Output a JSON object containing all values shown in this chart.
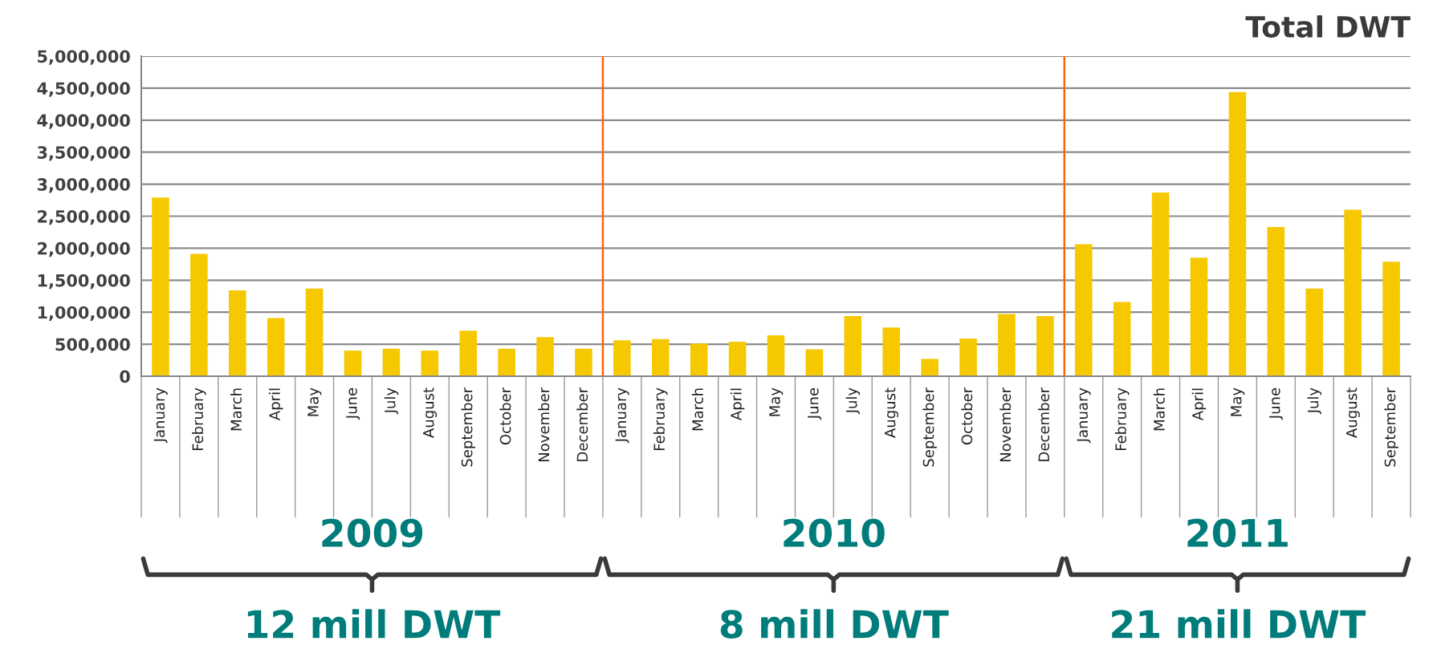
{
  "chart_data": {
    "type": "bar",
    "title": "Total DWT",
    "categories": [
      "January",
      "February",
      "March",
      "April",
      "May",
      "June",
      "July",
      "August",
      "September",
      "October",
      "November",
      "December",
      "January",
      "February",
      "March",
      "April",
      "May",
      "June",
      "July",
      "August",
      "September",
      "October",
      "November",
      "December",
      "January",
      "February",
      "March",
      "April",
      "May",
      "June",
      "July",
      "August",
      "September"
    ],
    "values": [
      2790000,
      1910000,
      1340000,
      910000,
      1370000,
      400000,
      430000,
      400000,
      710000,
      430000,
      610000,
      430000,
      560000,
      580000,
      510000,
      540000,
      640000,
      420000,
      940000,
      760000,
      270000,
      590000,
      970000,
      940000,
      2060000,
      1160000,
      2870000,
      1850000,
      4440000,
      2330000,
      1370000,
      2600000,
      1790000
    ],
    "color": "#f5c800",
    "ylim": [
      0,
      5000000
    ],
    "yticks": [
      {
        "value": 0,
        "label": "0"
      },
      {
        "value": 500000,
        "label": "500,000"
      },
      {
        "value": 1000000,
        "label": "1,000,000"
      },
      {
        "value": 1500000,
        "label": "1,500,000"
      },
      {
        "value": 2000000,
        "label": "2,000,000"
      },
      {
        "value": 2500000,
        "label": "2,500,000"
      },
      {
        "value": 3000000,
        "label": "3,000,000"
      },
      {
        "value": 3500000,
        "label": "3,500,000"
      },
      {
        "value": 4000000,
        "label": "4,000,000"
      },
      {
        "value": 4500000,
        "label": "4,500,000"
      },
      {
        "value": 5000000,
        "label": "5,000,000"
      }
    ],
    "grid": "y",
    "annotations": [
      "2009",
      "2010",
      "2011",
      "12 mill DWT",
      "8 mill DWT",
      "21 mill DWT"
    ]
  }
}
